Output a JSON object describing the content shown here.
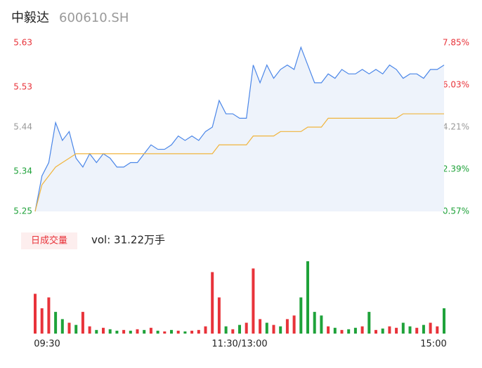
{
  "chart_data": {
    "type": "intraday",
    "title": "中毅达",
    "subtitle": "600610.SH",
    "ylim": [
      5.25,
      5.63
    ],
    "yticks": [
      5.63,
      5.53,
      5.44,
      5.34,
      5.25
    ],
    "ytick_colors": [
      "#e8333a",
      "#e8333a",
      "#999999",
      "#1fa23a",
      "#1fa23a"
    ],
    "y2lim": [
      0.57,
      7.85
    ],
    "y2ticks": [
      {
        "value": 7.85,
        "label": "7.85%"
      },
      {
        "value": 6.03,
        "label": "6.03%"
      },
      {
        "value": 4.21,
        "label": "4.21%"
      },
      {
        "value": 2.39,
        "label": "2.39%"
      },
      {
        "value": 0.57,
        "label": "0.57%"
      }
    ],
    "x_labels": [
      "09:30",
      "11:30/13:00",
      "15:00"
    ],
    "series": [
      {
        "color": "#4a86e8",
        "values": [
          5.25,
          5.33,
          5.36,
          5.45,
          5.41,
          5.43,
          5.37,
          5.35,
          5.38,
          5.36,
          5.38,
          5.37,
          5.35,
          5.35,
          5.36,
          5.36,
          5.38,
          5.4,
          5.39,
          5.39,
          5.4,
          5.42,
          5.41,
          5.42,
          5.41,
          5.43,
          5.44,
          5.5,
          5.47,
          5.47,
          5.46,
          5.46,
          5.58,
          5.54,
          5.58,
          5.55,
          5.57,
          5.58,
          5.57,
          5.62,
          5.58,
          5.54,
          5.54,
          5.56,
          5.55,
          5.57,
          5.56,
          5.56,
          5.57,
          5.56,
          5.57,
          5.56,
          5.58,
          5.57,
          5.55,
          5.56,
          5.56,
          5.55,
          5.57,
          5.57,
          5.58
        ]
      },
      {
        "color": "#f0b43c",
        "values": [
          5.25,
          5.31,
          5.33,
          5.35,
          5.36,
          5.37,
          5.38,
          5.38,
          5.38,
          5.38,
          5.38,
          5.38,
          5.38,
          5.38,
          5.38,
          5.38,
          5.38,
          5.38,
          5.38,
          5.38,
          5.38,
          5.38,
          5.38,
          5.38,
          5.38,
          5.38,
          5.38,
          5.4,
          5.4,
          5.4,
          5.4,
          5.4,
          5.42,
          5.42,
          5.42,
          5.42,
          5.43,
          5.43,
          5.43,
          5.43,
          5.44,
          5.44,
          5.44,
          5.46,
          5.46,
          5.46,
          5.46,
          5.46,
          5.46,
          5.46,
          5.46,
          5.46,
          5.46,
          5.46,
          5.47,
          5.47,
          5.47,
          5.47,
          5.47,
          5.47,
          5.47
        ]
      }
    ],
    "volume_label": "日成交量",
    "volume_text": "vol: 31.22万手",
    "volume": {
      "values": [
        0.55,
        0.35,
        0.5,
        0.3,
        0.2,
        0.15,
        0.12,
        0.3,
        0.1,
        0.05,
        0.08,
        0.06,
        0.04,
        0.05,
        0.04,
        0.06,
        0.05,
        0.08,
        0.04,
        0.03,
        0.05,
        0.04,
        0.03,
        0.04,
        0.05,
        0.1,
        0.85,
        0.5,
        0.1,
        0.06,
        0.12,
        0.15,
        0.9,
        0.2,
        0.15,
        0.12,
        0.1,
        0.2,
        0.25,
        0.5,
        1.0,
        0.3,
        0.25,
        0.1,
        0.08,
        0.05,
        0.06,
        0.08,
        0.1,
        0.3,
        0.05,
        0.07,
        0.1,
        0.08,
        0.15,
        0.1,
        0.08,
        0.12,
        0.15,
        0.1,
        0.35
      ],
      "colors": [
        "#e8333a",
        "#e8333a",
        "#e8333a",
        "#1fa23a",
        "#1fa23a",
        "#e8333a",
        "#1fa23a",
        "#e8333a",
        "#e8333a",
        "#1fa23a",
        "#e8333a",
        "#1fa23a",
        "#1fa23a",
        "#e8333a",
        "#1fa23a",
        "#e8333a",
        "#1fa23a",
        "#e8333a",
        "#1fa23a",
        "#e8333a",
        "#1fa23a",
        "#e8333a",
        "#1fa23a",
        "#e8333a",
        "#e8333a",
        "#e8333a",
        "#e8333a",
        "#e8333a",
        "#1fa23a",
        "#e8333a",
        "#1fa23a",
        "#e8333a",
        "#e8333a",
        "#e8333a",
        "#1fa23a",
        "#e8333a",
        "#1fa23a",
        "#e8333a",
        "#e8333a",
        "#1fa23a",
        "#1fa23a",
        "#1fa23a",
        "#1fa23a",
        "#e8333a",
        "#1fa23a",
        "#e8333a",
        "#1fa23a",
        "#1fa23a",
        "#e8333a",
        "#1fa23a",
        "#e8333a",
        "#1fa23a",
        "#e8333a",
        "#e8333a",
        "#1fa23a",
        "#1fa23a",
        "#e8333a",
        "#1fa23a",
        "#e8333a",
        "#e8333a",
        "#1fa23a"
      ]
    }
  }
}
